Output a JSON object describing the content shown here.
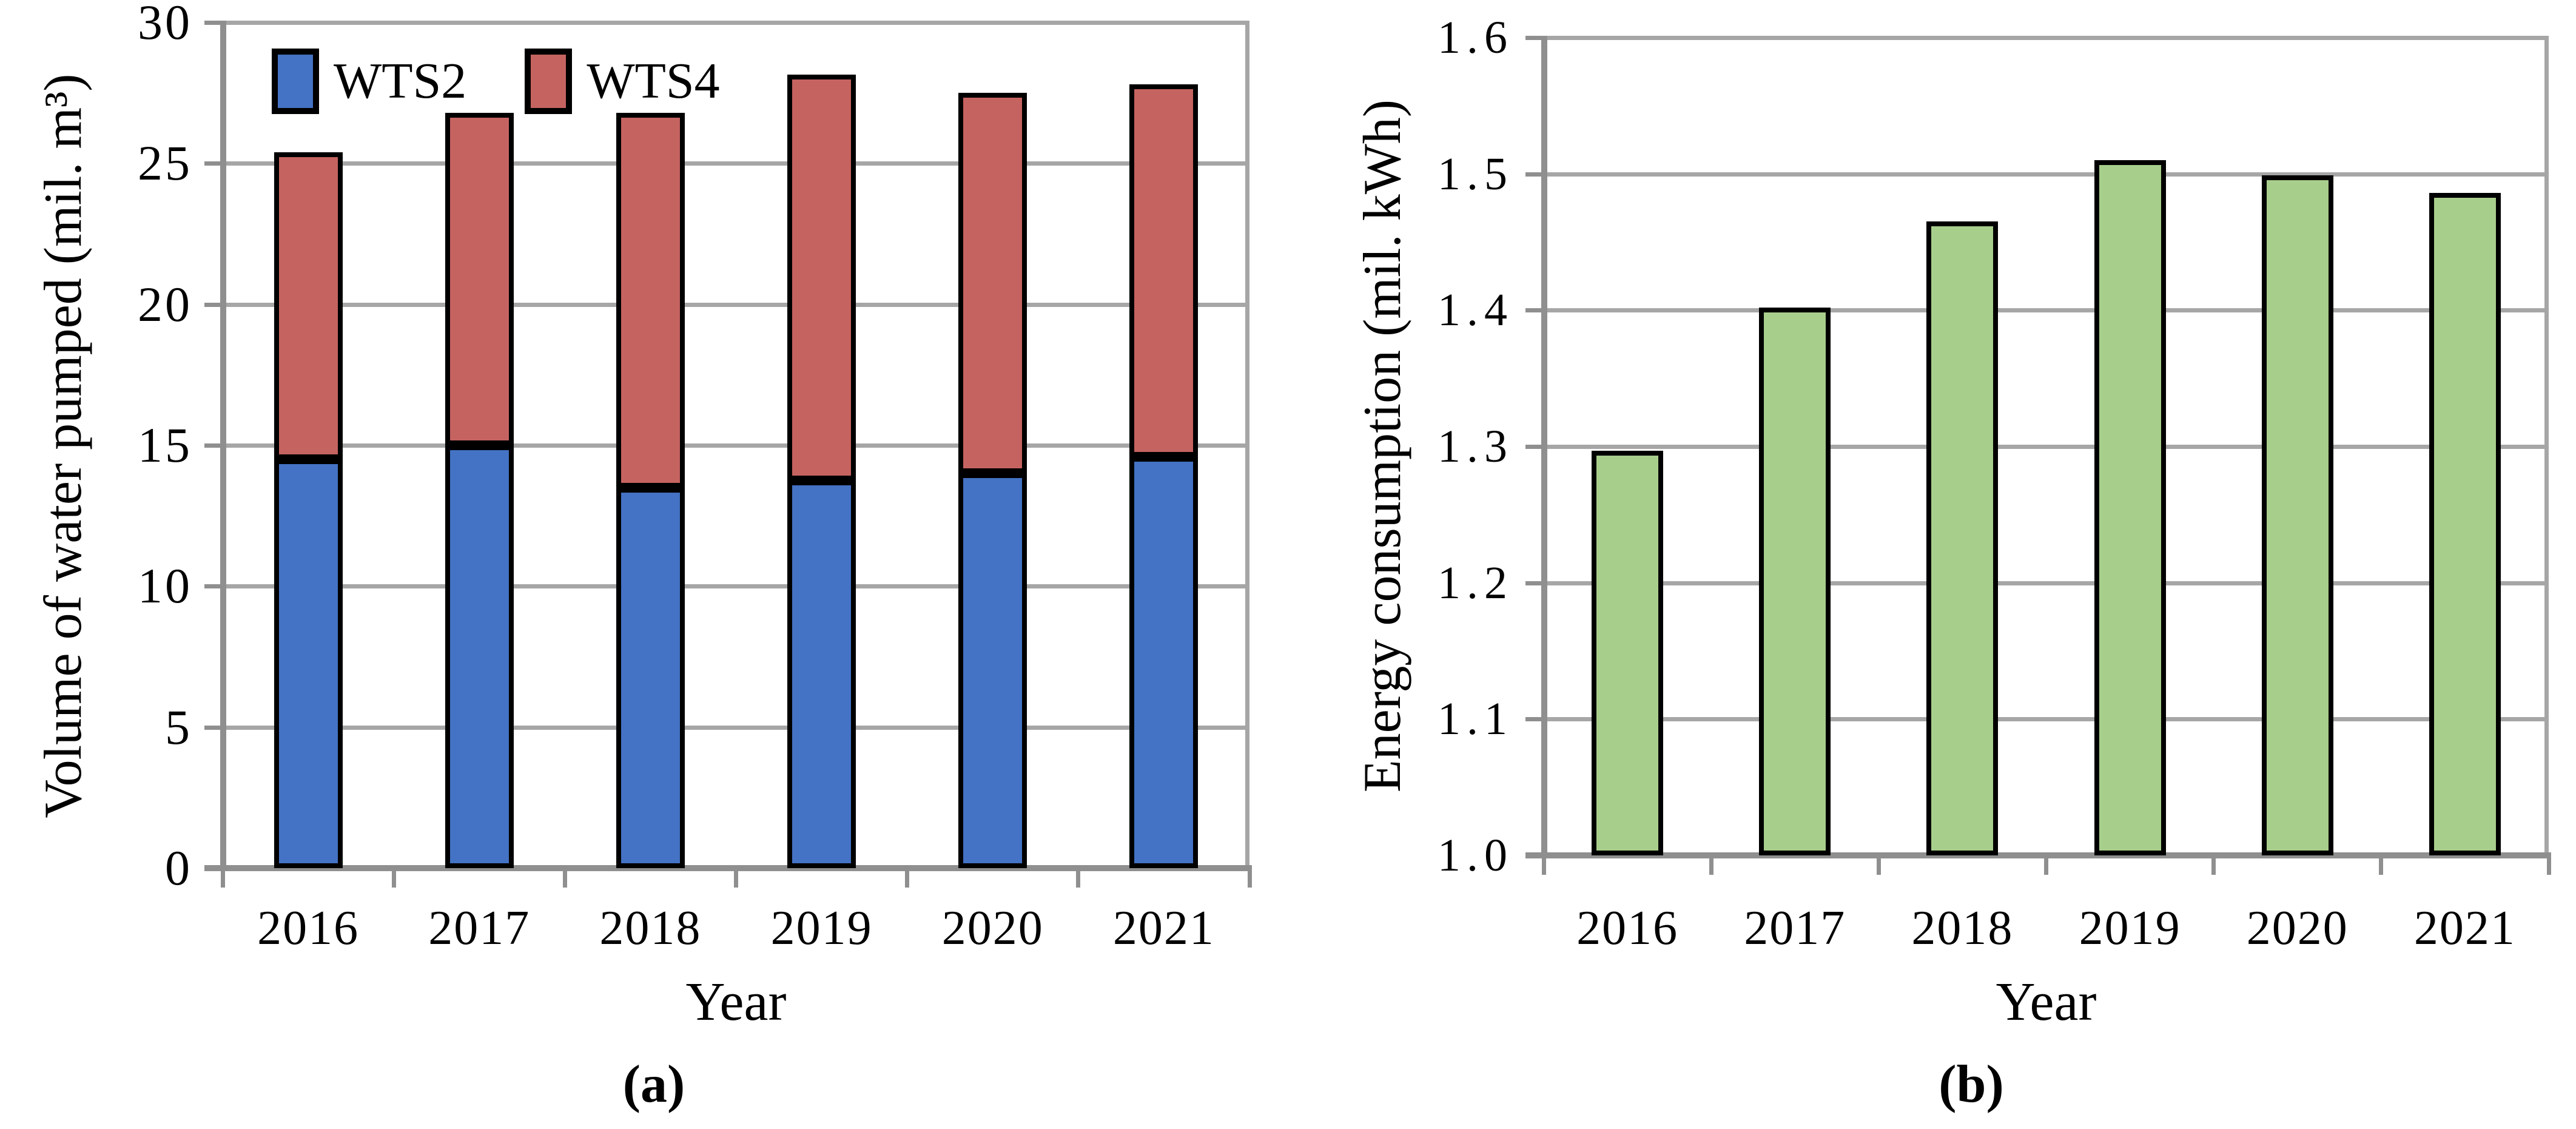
{
  "figure": {
    "caption_a": "(a)",
    "caption_b": "(b)"
  },
  "colors": {
    "wts2_blue": "#4472C4",
    "wts4_red": "#C56360",
    "energy_green": "#A8CE8C",
    "gridline_gray": "#A6A6A6",
    "axis_gray": "#8F8F8F",
    "bar_border": "#000000"
  },
  "chart_data": [
    {
      "type": "bar",
      "stacked": true,
      "title": "",
      "xlabel": "Year",
      "ylabel": "Volume of water pumped (mil. m³)",
      "categories": [
        "2016",
        "2017",
        "2018",
        "2019",
        "2020",
        "2021"
      ],
      "series": [
        {
          "name": "WTS2",
          "color": "#4472C4",
          "values": [
            14.5,
            15.0,
            13.5,
            13.75,
            14.0,
            14.6
          ]
        },
        {
          "name": "WTS4",
          "color": "#C56360",
          "values": [
            10.9,
            11.8,
            13.3,
            14.4,
            13.5,
            13.2
          ]
        }
      ],
      "stack_totals": [
        25.4,
        26.8,
        26.8,
        28.15,
        27.5,
        27.8
      ],
      "ylim": [
        0,
        30
      ],
      "ytick_step": 5,
      "y_tick_labels": [
        "30",
        "25",
        "20",
        "15",
        "10",
        "5",
        "0"
      ],
      "grid": true,
      "legend_position": "top-left-inside"
    },
    {
      "type": "bar",
      "stacked": false,
      "title": "",
      "xlabel": "Year",
      "ylabel": "Energy consumption (mil. kWh)",
      "categories": [
        "2016",
        "2017",
        "2018",
        "2019",
        "2020",
        "2021"
      ],
      "series": [
        {
          "name": "Energy consumption",
          "color": "#A8CE8C",
          "values": [
            1.297,
            1.402,
            1.465,
            1.51,
            1.499,
            1.486
          ]
        }
      ],
      "ylim": [
        1.0,
        1.6
      ],
      "ytick_step": 0.1,
      "y_tick_labels": [
        "1.6",
        "1.5",
        "1.4",
        "1.3",
        "1.2",
        "1.1",
        "1.0"
      ],
      "grid": true,
      "legend_position": "none"
    }
  ]
}
